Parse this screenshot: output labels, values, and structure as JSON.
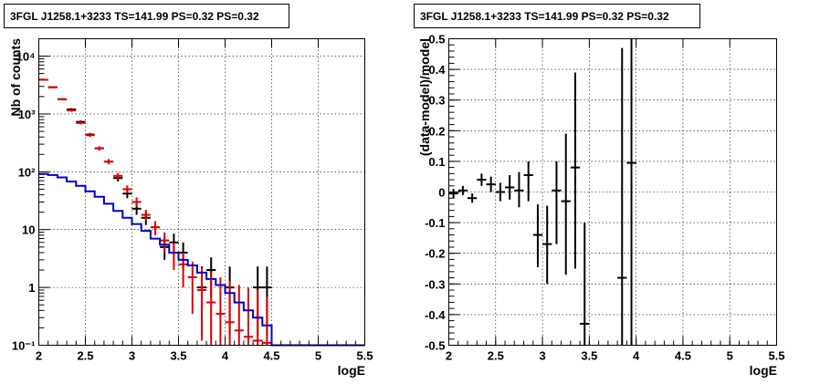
{
  "chart_data": [
    {
      "type": "scatter",
      "title": "3FGL J1258.1+3233 TS=141.99 PS=0.32 PS=0.32",
      "xlabel": "logE",
      "ylabel": "Nb of counts",
      "xlim": [
        2,
        5.5
      ],
      "ylim": [
        0.1,
        20000
      ],
      "yscale": "log",
      "grid": true,
      "x_ticks": [
        "2",
        "2.5",
        "3",
        "3.5",
        "4",
        "4.5",
        "5",
        "5.5"
      ],
      "y_ticks": [
        {
          "value": 0.1,
          "label": "10⁻¹"
        },
        {
          "value": 1,
          "label": "1"
        },
        {
          "value": 10,
          "label": "10"
        },
        {
          "value": 100,
          "label": "10²"
        },
        {
          "value": 1000,
          "label": "10³"
        },
        {
          "value": 10000,
          "label": "10⁴"
        }
      ],
      "colors": {
        "data": "#000000",
        "model": "#dd0000",
        "background": "#0000cc"
      },
      "series": [
        {
          "kind": "points",
          "color": "#000000",
          "points": [
            {
              "x": 2.05,
              "y": 3900,
              "lo": 3780,
              "hi": 4020
            },
            {
              "x": 2.15,
              "y": 2900,
              "lo": 2800,
              "hi": 3000
            },
            {
              "x": 2.25,
              "y": 1800,
              "lo": 1720,
              "hi": 1880
            },
            {
              "x": 2.35,
              "y": 1200,
              "lo": 1140,
              "hi": 1260
            },
            {
              "x": 2.45,
              "y": 730,
              "lo": 690,
              "hi": 770
            },
            {
              "x": 2.55,
              "y": 440,
              "lo": 410,
              "hi": 470
            },
            {
              "x": 2.65,
              "y": 255,
              "lo": 235,
              "hi": 275
            },
            {
              "x": 2.75,
              "y": 150,
              "lo": 135,
              "hi": 165
            },
            {
              "x": 2.85,
              "y": 78,
              "lo": 68,
              "hi": 88
            },
            {
              "x": 2.95,
              "y": 42,
              "lo": 35,
              "hi": 49
            },
            {
              "x": 3.05,
              "y": 23,
              "lo": 18,
              "hi": 28
            },
            {
              "x": 3.15,
              "y": 16,
              "lo": 12,
              "hi": 20
            },
            {
              "x": 3.25,
              "y": 11,
              "lo": 8,
              "hi": 14
            },
            {
              "x": 3.35,
              "y": 5,
              "lo": 3,
              "hi": 7
            },
            {
              "x": 3.45,
              "y": 6,
              "lo": 3.6,
              "hi": 8.5
            },
            {
              "x": 3.55,
              "y": 4,
              "lo": 2,
              "hi": 6
            },
            {
              "x": 3.75,
              "y": 1,
              "lo": 0.15,
              "hi": 2.3
            },
            {
              "x": 3.85,
              "y": 2,
              "lo": 0.7,
              "hi": 3.3
            },
            {
              "x": 4.05,
              "y": 1,
              "lo": 0.15,
              "hi": 2.3
            },
            {
              "x": 4.35,
              "y": 1,
              "lo": 0.15,
              "hi": 2.3
            },
            {
              "x": 4.45,
              "y": 1,
              "lo": 0.15,
              "hi": 2.3
            }
          ]
        },
        {
          "kind": "points",
          "color": "#dd0000",
          "points": [
            {
              "x": 2.05,
              "y": 3900,
              "lo": 3780,
              "hi": 4020
            },
            {
              "x": 2.15,
              "y": 2900,
              "lo": 2800,
              "hi": 3000
            },
            {
              "x": 2.25,
              "y": 1800,
              "lo": 1720,
              "hi": 1880
            },
            {
              "x": 2.35,
              "y": 1150,
              "lo": 1090,
              "hi": 1210
            },
            {
              "x": 2.45,
              "y": 700,
              "lo": 660,
              "hi": 740
            },
            {
              "x": 2.55,
              "y": 430,
              "lo": 400,
              "hi": 460
            },
            {
              "x": 2.65,
              "y": 255,
              "lo": 235,
              "hi": 275
            },
            {
              "x": 2.75,
              "y": 150,
              "lo": 135,
              "hi": 165
            },
            {
              "x": 2.85,
              "y": 85,
              "lo": 75,
              "hi": 95
            },
            {
              "x": 2.95,
              "y": 50,
              "lo": 42,
              "hi": 58
            },
            {
              "x": 3.05,
              "y": 30,
              "lo": 25,
              "hi": 36
            },
            {
              "x": 3.15,
              "y": 18,
              "lo": 14,
              "hi": 22
            },
            {
              "x": 3.25,
              "y": 11,
              "lo": 8,
              "hi": 14
            },
            {
              "x": 3.35,
              "y": 6.5,
              "lo": 4,
              "hi": 9
            },
            {
              "x": 3.45,
              "y": 4,
              "lo": 2,
              "hi": 6
            },
            {
              "x": 3.55,
              "y": 2.5,
              "lo": 1,
              "hi": 4
            },
            {
              "x": 3.65,
              "y": 1.5,
              "lo": 0.35,
              "hi": 2.8
            },
            {
              "x": 3.75,
              "y": 0.9,
              "lo": 0.12,
              "hi": 2.2
            },
            {
              "x": 3.85,
              "y": 0.55,
              "lo": 0.1,
              "hi": 1.8
            },
            {
              "x": 3.95,
              "y": 0.35,
              "lo": 0.1,
              "hi": 1.5
            },
            {
              "x": 4.05,
              "y": 0.25,
              "lo": 0.1,
              "hi": 1.3
            },
            {
              "x": 4.15,
              "y": 0.18,
              "lo": 0.1,
              "hi": 1.1
            },
            {
              "x": 4.25,
              "y": 0.14,
              "lo": 0.1,
              "hi": 1.0
            },
            {
              "x": 4.35,
              "y": 0.12,
              "lo": 0.1,
              "hi": 0.9
            },
            {
              "x": 4.45,
              "y": 0.11,
              "lo": 0.1,
              "hi": 0.7
            }
          ]
        },
        {
          "kind": "step",
          "color": "#0000cc",
          "edges": [
            2.0,
            2.1,
            2.2,
            2.3,
            2.4,
            2.5,
            2.6,
            2.7,
            2.8,
            2.9,
            3.0,
            3.1,
            3.2,
            3.3,
            3.4,
            3.5,
            3.6,
            3.7,
            3.8,
            3.9,
            4.0,
            4.1,
            4.2,
            4.3,
            4.4,
            4.5,
            4.6,
            4.7,
            4.8,
            4.9,
            5.0,
            5.1,
            5.2,
            5.3,
            5.4,
            5.5
          ],
          "values": [
            92,
            88,
            80,
            68,
            57,
            46,
            37,
            28,
            21,
            16,
            12.5,
            9.5,
            7,
            5.5,
            4,
            3,
            2.4,
            1.8,
            1.4,
            1.1,
            0.8,
            0.55,
            0.4,
            0.3,
            0.22,
            0.1,
            0.1,
            0.1,
            0.1,
            0.1,
            0.1,
            0.1,
            0.1,
            0.1,
            0.1
          ]
        }
      ]
    },
    {
      "type": "scatter",
      "title": "3FGL J1258.1+3233 TS=141.99 PS=0.32 PS=0.32",
      "xlabel": "logE",
      "ylabel": "(data-model)/model",
      "xlim": [
        2,
        5.5
      ],
      "ylim": [
        -0.5,
        0.5
      ],
      "yscale": "linear",
      "grid": true,
      "x_ticks": [
        "2",
        "2.5",
        "3",
        "3.5",
        "4",
        "4.5",
        "5",
        "5.5"
      ],
      "y_ticks": [
        "-0.5",
        "-0.4",
        "-0.3",
        "-0.2",
        "-0.1",
        "0",
        "0.1",
        "0.2",
        "0.3",
        "0.4",
        "0.5"
      ],
      "series": [
        {
          "kind": "points",
          "color": "#000000",
          "points": [
            {
              "x": 2.05,
              "y": -0.005,
              "lo": -0.02,
              "hi": 0.01
            },
            {
              "x": 2.15,
              "y": 0.005,
              "lo": -0.01,
              "hi": 0.02
            },
            {
              "x": 2.25,
              "y": -0.02,
              "lo": -0.035,
              "hi": -0.005
            },
            {
              "x": 2.35,
              "y": 0.04,
              "lo": 0.02,
              "hi": 0.06
            },
            {
              "x": 2.45,
              "y": 0.025,
              "lo": 0.0,
              "hi": 0.05
            },
            {
              "x": 2.55,
              "y": 0.0,
              "lo": -0.03,
              "hi": 0.03
            },
            {
              "x": 2.65,
              "y": 0.015,
              "lo": -0.025,
              "hi": 0.055
            },
            {
              "x": 2.75,
              "y": 0.005,
              "lo": -0.05,
              "hi": 0.065
            },
            {
              "x": 2.85,
              "y": 0.055,
              "lo": -0.03,
              "hi": 0.1
            },
            {
              "x": 2.95,
              "y": -0.14,
              "lo": -0.245,
              "hi": -0.04
            },
            {
              "x": 3.05,
              "y": -0.17,
              "lo": -0.3,
              "hi": -0.045
            },
            {
              "x": 3.15,
              "y": 0.005,
              "lo": -0.17,
              "hi": 0.1
            },
            {
              "x": 3.25,
              "y": -0.03,
              "lo": -0.27,
              "hi": 0.19
            },
            {
              "x": 3.35,
              "y": 0.08,
              "lo": -0.25,
              "hi": 0.39
            },
            {
              "x": 3.45,
              "y": -0.43,
              "lo": -0.5,
              "hi": -0.1
            },
            {
              "x": 3.85,
              "y": -0.28,
              "lo": -0.5,
              "hi": 0.47
            },
            {
              "x": 3.95,
              "y": 0.095,
              "lo": -0.5,
              "hi": 0.5
            }
          ]
        }
      ]
    }
  ]
}
